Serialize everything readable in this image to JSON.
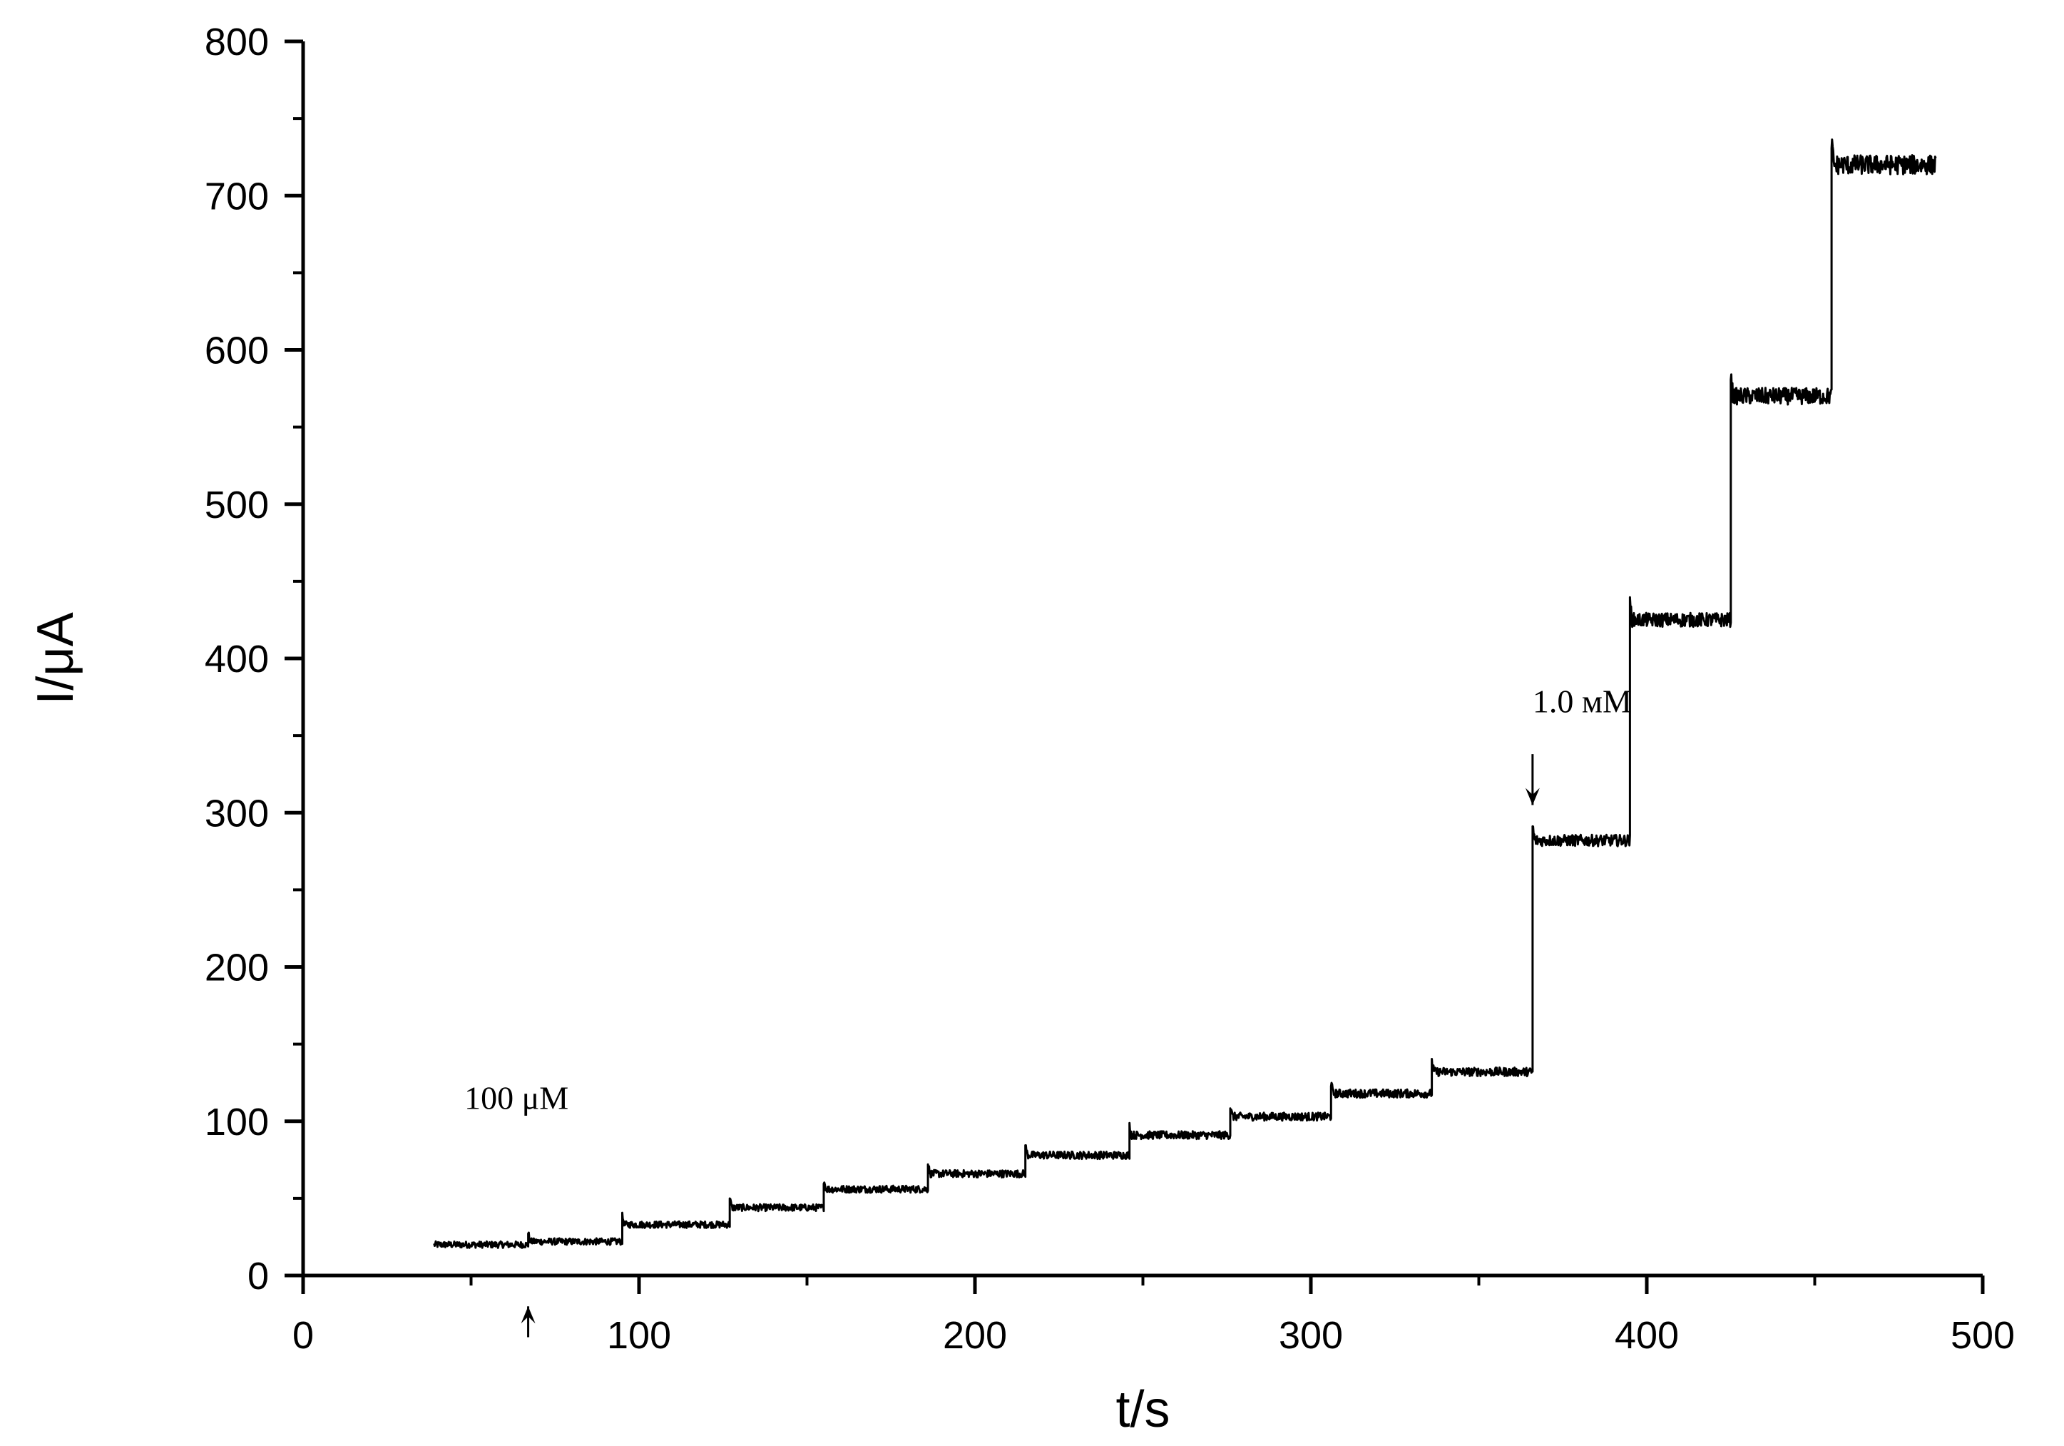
{
  "chart_data": {
    "type": "line",
    "title": "",
    "xlabel": "t/s",
    "ylabel": "I/μA",
    "xlim": [
      0,
      500
    ],
    "ylim": [
      0,
      800
    ],
    "x_ticks": [
      0,
      100,
      200,
      300,
      400,
      500
    ],
    "y_ticks": [
      0,
      100,
      200,
      300,
      400,
      500,
      600,
      700,
      800
    ],
    "x_tick_labels": [
      "0",
      "100",
      "200",
      "300",
      "400",
      "500"
    ],
    "y_tick_labels": [
      "0",
      "100",
      "200",
      "300",
      "400",
      "500",
      "600",
      "700",
      "800"
    ],
    "grid": false,
    "legend": "none",
    "line_color": "#000000",
    "series": [
      {
        "steps": [
          {
            "t_start": 39,
            "t_end": 67,
            "level": 20
          },
          {
            "t_start": 67,
            "t_end": 95,
            "level": 22
          },
          {
            "t_start": 95,
            "t_end": 127,
            "level": 33
          },
          {
            "t_start": 127,
            "t_end": 155,
            "level": 44
          },
          {
            "t_start": 155,
            "t_end": 186,
            "level": 56
          },
          {
            "t_start": 186,
            "t_end": 215,
            "level": 66
          },
          {
            "t_start": 215,
            "t_end": 246,
            "level": 78
          },
          {
            "t_start": 246,
            "t_end": 276,
            "level": 91
          },
          {
            "t_start": 276,
            "t_end": 306,
            "level": 103
          },
          {
            "t_start": 306,
            "t_end": 336,
            "level": 118
          },
          {
            "t_start": 336,
            "t_end": 366,
            "level": 132
          },
          {
            "t_start": 366,
            "t_end": 395,
            "level": 282
          },
          {
            "t_start": 395,
            "t_end": 425,
            "level": 425
          },
          {
            "t_start": 425,
            "t_end": 455,
            "level": 570
          },
          {
            "t_start": 455,
            "t_end": 486,
            "level": 720
          }
        ]
      }
    ],
    "annotations": [
      {
        "text": "100 μM",
        "t": 48,
        "value": 108
      },
      {
        "text": "1.0 мM",
        "t": 366,
        "value": 365
      }
    ],
    "arrows": [
      {
        "t": 67,
        "from_value": -40,
        "to_value": -20,
        "direction": "up"
      },
      {
        "t": 366,
        "from_value": 338,
        "to_value": 305,
        "direction": "down"
      }
    ]
  }
}
